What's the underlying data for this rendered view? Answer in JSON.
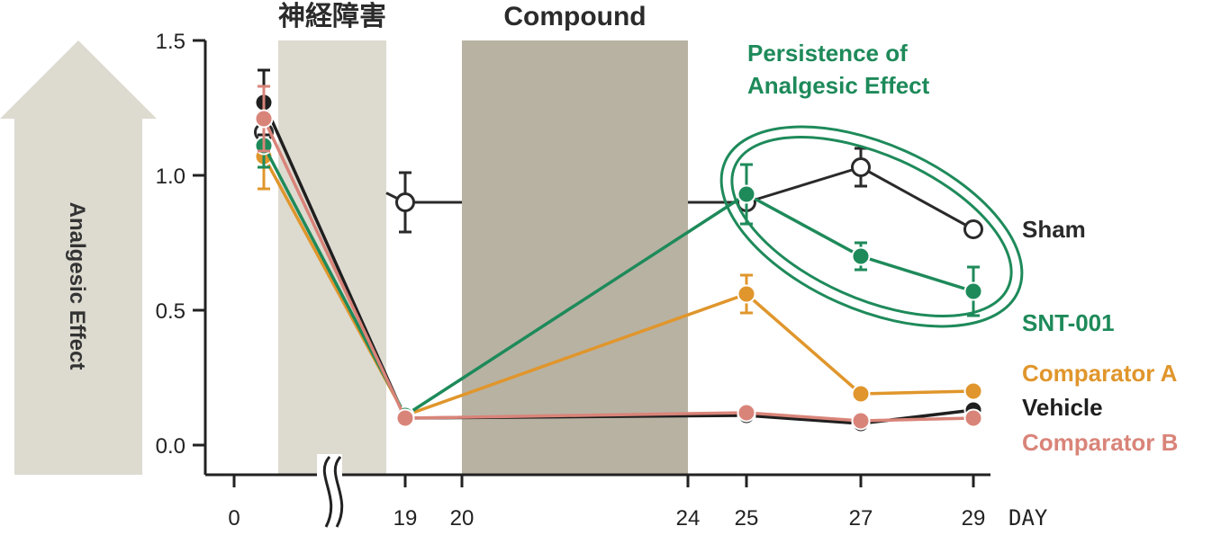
{
  "chart_data": {
    "type": "line",
    "ylabel": "Analgesic Effect",
    "xlabel": "DAY",
    "ylim": [
      0.0,
      1.5
    ],
    "y_ticks": [
      "0.0",
      "0.5",
      "1.0",
      "1.5"
    ],
    "x_ticks": [
      {
        "label": "0",
        "day": 0
      },
      {
        "label": "19",
        "day": 19
      },
      {
        "label": "20",
        "day": 20
      },
      {
        "label": "24",
        "day": 24
      },
      {
        "label": "25",
        "day": 25
      },
      {
        "label": "27",
        "day": 27
      },
      {
        "label": "29",
        "day": 29
      }
    ],
    "bands": [
      {
        "label": "神経障害",
        "start_day": 1,
        "end_day": 18.6,
        "color": "#dddad0"
      },
      {
        "label": "Compound",
        "start_day": 20,
        "end_day": 24,
        "color": "#b8b2a3"
      }
    ],
    "annotation": {
      "lines": [
        "Persistence of",
        "Analgesic Effect"
      ],
      "color": "#1e8a5a"
    },
    "series": [
      {
        "name": "Sham",
        "color": "#2a2a2a",
        "open": true,
        "points": [
          {
            "day": 0.5,
            "y": 1.16,
            "err": 0.0
          },
          {
            "day": 19,
            "y": 0.9,
            "err": 0.11
          },
          {
            "day": 25,
            "y": 0.9,
            "err": 0.0
          },
          {
            "day": 27,
            "y": 1.03,
            "err": 0.07
          },
          {
            "day": 29,
            "y": 0.8,
            "err": 0.0
          }
        ]
      },
      {
        "name": "Vehicle",
        "color": "#1f1f1f",
        "open": false,
        "points": [
          {
            "day": 0.5,
            "y": 1.27,
            "err": 0.12
          },
          {
            "day": 19,
            "y": 0.1,
            "err": 0.0
          },
          {
            "day": 25,
            "y": 0.11,
            "err": 0.0
          },
          {
            "day": 27,
            "y": 0.08,
            "err": 0.0
          },
          {
            "day": 29,
            "y": 0.13,
            "err": 0.0
          }
        ]
      },
      {
        "name": "Comparator A",
        "color": "#e0962c",
        "open": false,
        "points": [
          {
            "day": 0.5,
            "y": 1.07,
            "err": 0.12
          },
          {
            "day": 19,
            "y": 0.11,
            "err": 0.0
          },
          {
            "day": 25,
            "y": 0.56,
            "err": 0.07
          },
          {
            "day": 27,
            "y": 0.19,
            "err": 0.0
          },
          {
            "day": 29,
            "y": 0.2,
            "err": 0.0
          }
        ]
      },
      {
        "name": "SNT-001",
        "color": "#1e8a5a",
        "open": false,
        "points": [
          {
            "day": 0.5,
            "y": 1.11,
            "err": 0.08
          },
          {
            "day": 19,
            "y": 0.11,
            "err": 0.0
          },
          {
            "day": 25,
            "y": 0.93,
            "err": 0.11
          },
          {
            "day": 27,
            "y": 0.7,
            "err": 0.05
          },
          {
            "day": 29,
            "y": 0.57,
            "err": 0.09
          }
        ]
      },
      {
        "name": "Comparator B",
        "color": "#d98479",
        "open": false,
        "points": [
          {
            "day": 0.5,
            "y": 1.21,
            "err": 0.12
          },
          {
            "day": 19,
            "y": 0.1,
            "err": 0.0
          },
          {
            "day": 25,
            "y": 0.12,
            "err": 0.0
          },
          {
            "day": 27,
            "y": 0.09,
            "err": 0.0
          },
          {
            "day": 29,
            "y": 0.1,
            "err": 0.0
          }
        ]
      }
    ],
    "legend_order": [
      "Sham",
      "SNT-001",
      "Comparator A",
      "Vehicle",
      "Comparator B"
    ]
  }
}
